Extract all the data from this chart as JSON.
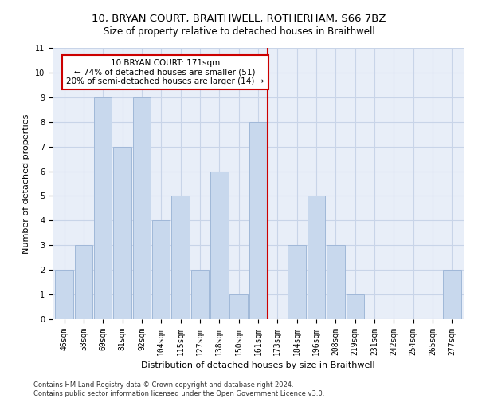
{
  "title": "10, BRYAN COURT, BRAITHWELL, ROTHERHAM, S66 7BZ",
  "subtitle": "Size of property relative to detached houses in Braithwell",
  "xlabel": "Distribution of detached houses by size in Braithwell",
  "ylabel": "Number of detached properties",
  "bar_labels": [
    "46sqm",
    "58sqm",
    "69sqm",
    "81sqm",
    "92sqm",
    "104sqm",
    "115sqm",
    "127sqm",
    "138sqm",
    "150sqm",
    "161sqm",
    "173sqm",
    "184sqm",
    "196sqm",
    "208sqm",
    "219sqm",
    "231sqm",
    "242sqm",
    "254sqm",
    "265sqm",
    "277sqm"
  ],
  "bar_values": [
    2,
    3,
    9,
    7,
    9,
    4,
    5,
    2,
    6,
    1,
    8,
    0,
    3,
    5,
    3,
    1,
    0,
    0,
    0,
    0,
    2
  ],
  "bar_color": "#c8d8ed",
  "bar_edge_color": "#a0b8d8",
  "vline_index": 11,
  "vline_color": "#cc0000",
  "annotation_text": "10 BRYAN COURT: 171sqm\n← 74% of detached houses are smaller (51)\n20% of semi-detached houses are larger (14) →",
  "annotation_box_color": "#ffffff",
  "annotation_box_edge_color": "#cc0000",
  "ylim": [
    0,
    11
  ],
  "yticks": [
    0,
    1,
    2,
    3,
    4,
    5,
    6,
    7,
    8,
    9,
    10,
    11
  ],
  "grid_color": "#c8d4e8",
  "background_color": "#e8eef8",
  "footer": "Contains HM Land Registry data © Crown copyright and database right 2024.\nContains public sector information licensed under the Open Government Licence v3.0.",
  "title_fontsize": 9.5,
  "subtitle_fontsize": 8.5,
  "ylabel_fontsize": 8,
  "xlabel_fontsize": 8,
  "tick_fontsize": 7,
  "annotation_fontsize": 7.5,
  "footer_fontsize": 6
}
